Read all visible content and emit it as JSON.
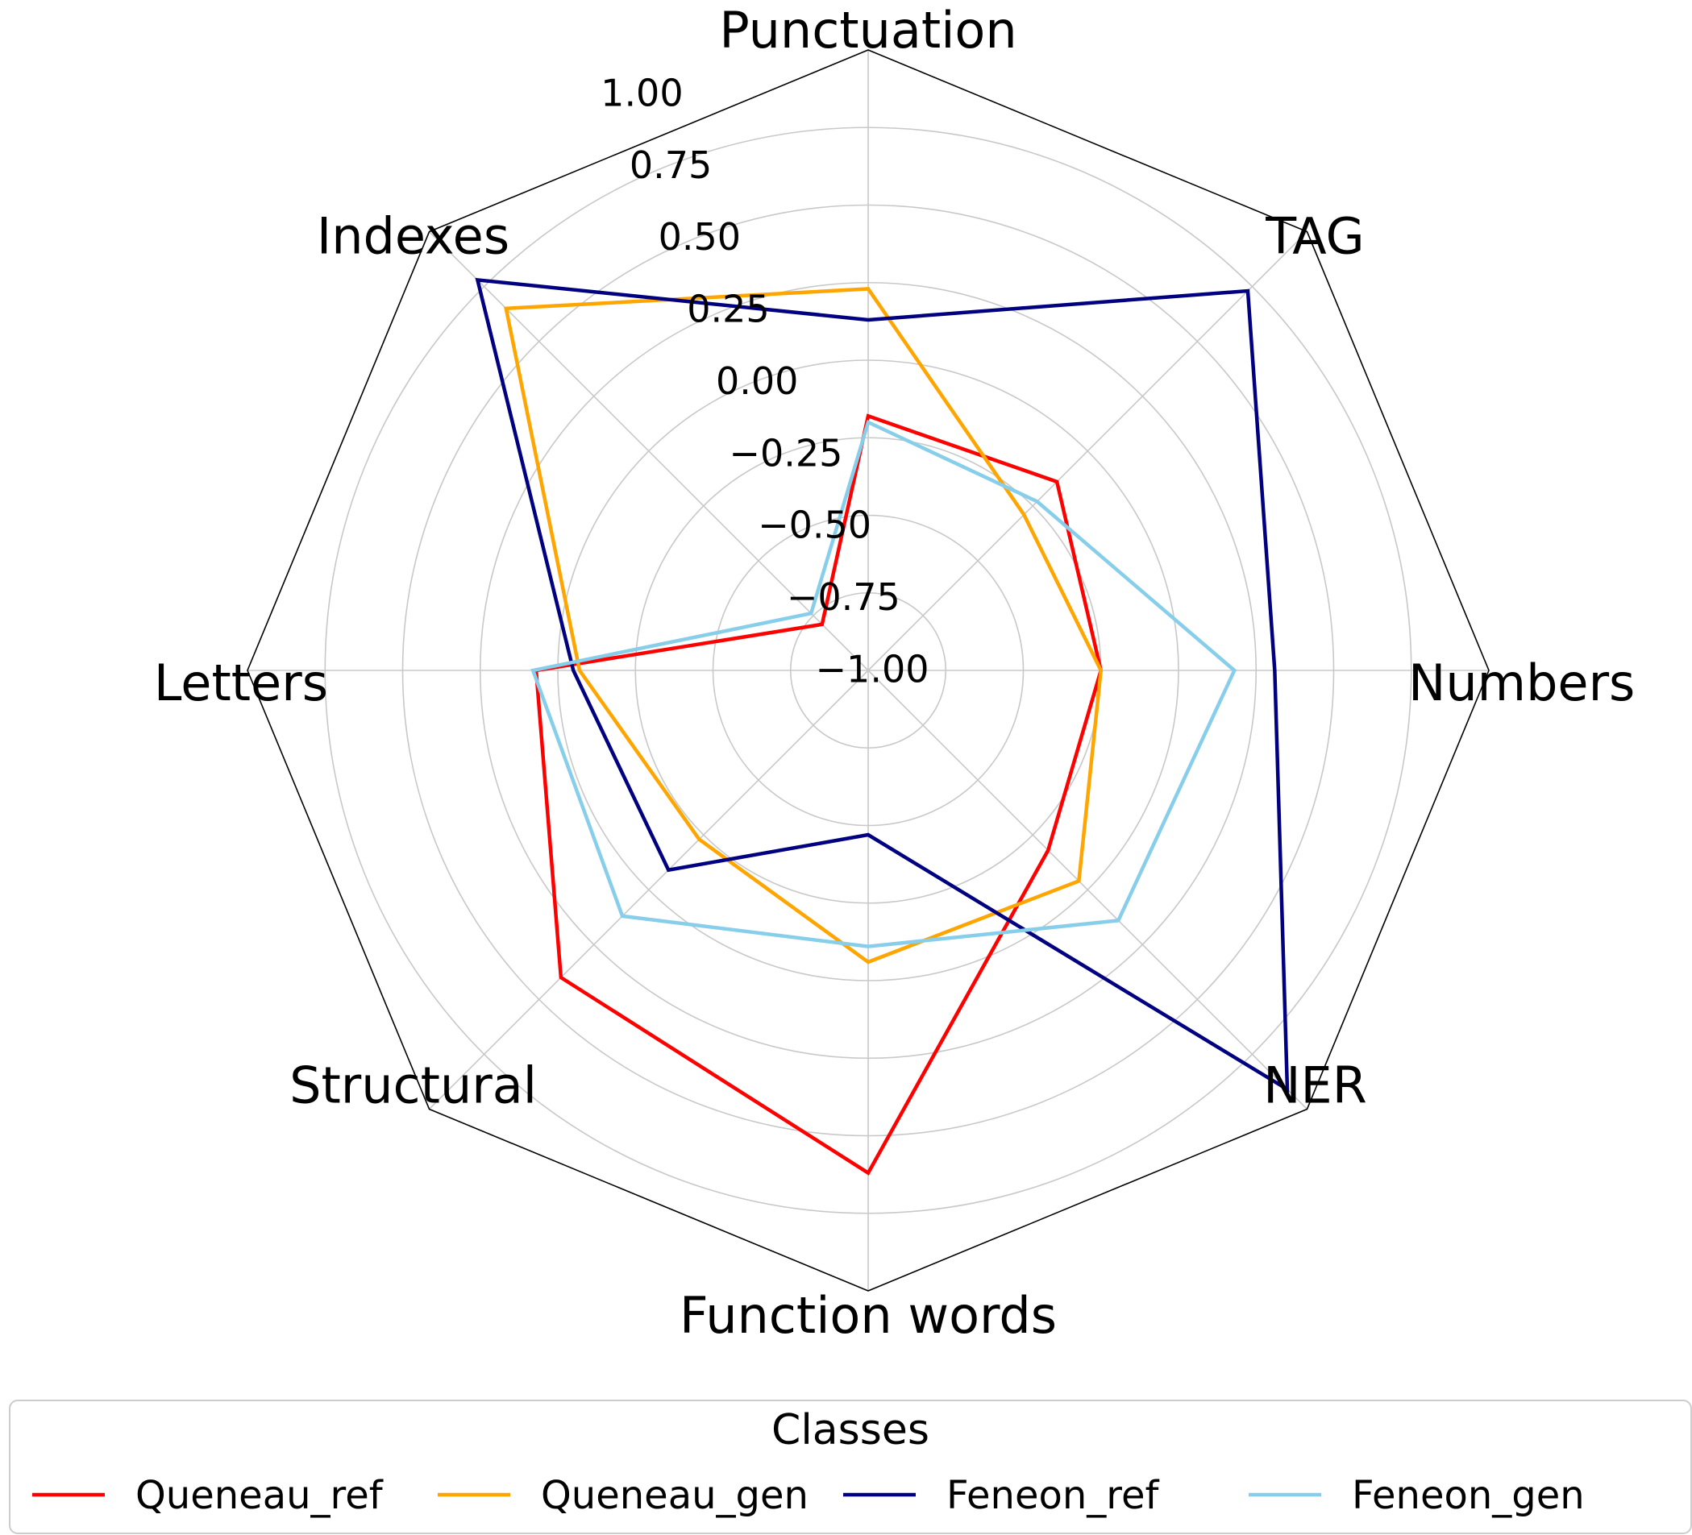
{
  "chart_data": {
    "type": "radar",
    "axes": [
      "Punctuation",
      "TAG",
      "Numbers",
      "NER",
      "Function words",
      "Structural",
      "Letters",
      "Indexes"
    ],
    "rlim": [
      -1.0,
      1.0
    ],
    "r_ticks": [
      "1.00",
      "0.75",
      "0.50",
      "0.25",
      "0.00",
      "−0.25",
      "−0.50",
      "−0.75",
      "−1.00"
    ],
    "r_tick_values": [
      1.0,
      0.75,
      0.5,
      0.25,
      0.0,
      -0.25,
      -0.5,
      -0.75,
      -1.0
    ],
    "grid": true,
    "legend": {
      "title": "Classes",
      "position": "bottom"
    },
    "series": [
      {
        "name": "Queneau_ref",
        "color": "#ff0000",
        "values": [
          -0.18,
          -0.14,
          -0.25,
          -0.18,
          0.62,
          0.4,
          0.07,
          -0.79
        ]
      },
      {
        "name": "Queneau_gen",
        "color": "#ffa500",
        "values": [
          0.23,
          -0.29,
          -0.25,
          -0.04,
          -0.06,
          -0.23,
          -0.07,
          0.65
        ]
      },
      {
        "name": "Feneon_ref",
        "color": "#000080",
        "values": [
          0.13,
          0.73,
          0.31,
          0.91,
          -0.47,
          -0.09,
          -0.05,
          0.78
        ]
      },
      {
        "name": "Feneon_gen",
        "color": "#87ceeb",
        "values": [
          -0.2,
          -0.23,
          0.18,
          0.14,
          -0.11,
          0.12,
          0.08,
          -0.74
        ]
      }
    ]
  }
}
